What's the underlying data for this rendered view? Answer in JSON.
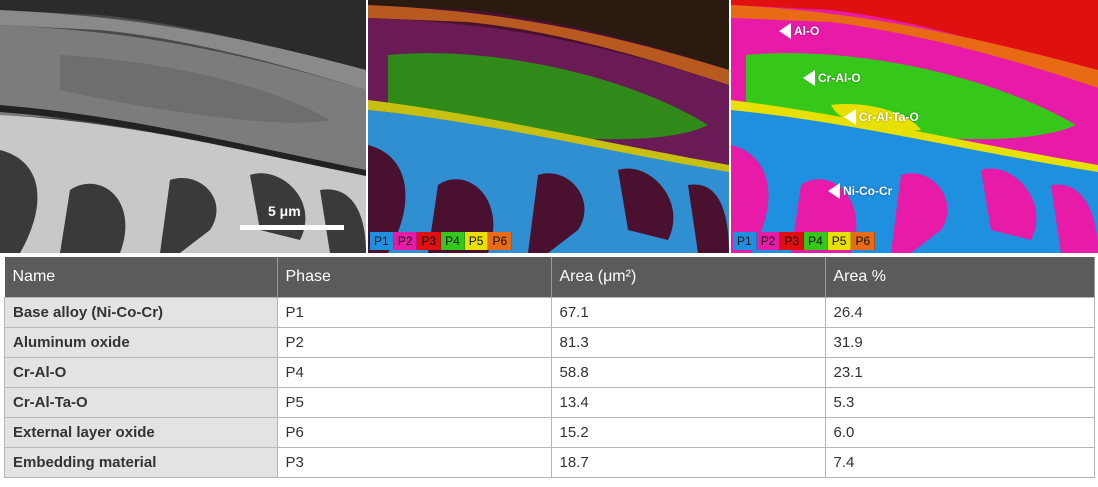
{
  "images": {
    "scale_bar_label": "5 μm",
    "legend": [
      "P1",
      "P2",
      "P3",
      "P4",
      "P5",
      "P6"
    ],
    "phase_colors": {
      "P1": "#1f8fe0",
      "P2": "#e81aa8",
      "P3": "#e01010",
      "P4": "#35c81a",
      "P5": "#e8e000",
      "P6": "#e86a14"
    },
    "annotations": [
      "Al-O",
      "Cr-Al-O",
      "Cr-Al-Ta-O",
      "Ni-Co-Cr"
    ]
  },
  "table": {
    "headers": [
      "Name",
      "Phase",
      "Area (μm²)",
      "Area %"
    ],
    "rows": [
      [
        "Base alloy (Ni-Co-Cr)",
        "P1",
        "67.1",
        "26.4"
      ],
      [
        "Aluminum oxide",
        "P2",
        "81.3",
        "31.9"
      ],
      [
        "Cr-Al-O",
        "P4",
        "58.8",
        "23.1"
      ],
      [
        "Cr-Al-Ta-O",
        "P5",
        "13.4",
        "5.3"
      ],
      [
        "External layer oxide",
        "P6",
        "15.2",
        "6.0"
      ],
      [
        "Embedding material",
        "P3",
        "18.7",
        "7.4"
      ]
    ]
  }
}
